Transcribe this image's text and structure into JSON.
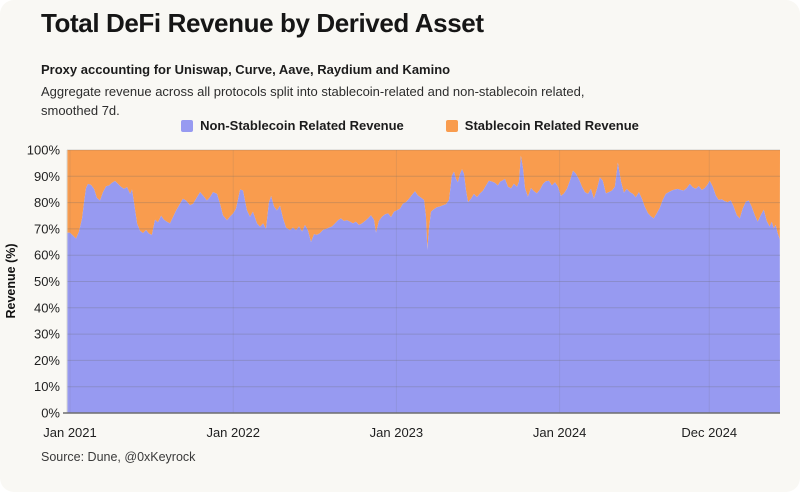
{
  "page": {
    "background": "#F9F8F4"
  },
  "header": {
    "title": "Total DeFi Revenue by Derived Asset"
  },
  "subtitle": "Proxy accounting for Uniswap, Curve, Aave, Raydium and Kamino",
  "description_lines": {
    "l1": "Aggregate revenue across all protocols split into stablecoin-related and non-stablecoin related,",
    "l2": "smoothed 7d."
  },
  "legend": {
    "items": [
      {
        "label": "Non-Stablecoin Related Revenue",
        "color": "#979AF1"
      },
      {
        "label": "Stablecoin Related Revenue",
        "color": "#F99C4E"
      }
    ]
  },
  "source": "Source: Dune, @0xKeyrock",
  "colors": {
    "non_stablecoin_area": "#979AF1",
    "stablecoin_area": "#F99C4E",
    "gridline": "rgba(105,105,105,0.27)",
    "year_gridline": "rgba(105,105,105,0.14)",
    "axis_line": "#6e6e6e",
    "plot_left_border": "#d8d8d4"
  },
  "chart_data": {
    "type": "area",
    "stacked": true,
    "title": "Total DeFi Revenue by Derived Asset",
    "xlabel": "",
    "ylabel": "Revenue (%)",
    "ylim": [
      0,
      100
    ],
    "y_tick_step": 10,
    "y_tick_labels": [
      "0%",
      "10%",
      "20%",
      "30%",
      "40%",
      "50%",
      "60%",
      "70%",
      "80%",
      "90%",
      "100%"
    ],
    "grid": true,
    "legend_position": "top",
    "x_ticks": [
      {
        "label": "Jan 2021",
        "year": 2021.0
      },
      {
        "label": "Jan 2022",
        "year": 2022.0
      },
      {
        "label": "Jan 2023",
        "year": 2023.0
      },
      {
        "label": "Jan 2024",
        "year": 2024.0
      },
      {
        "label": "Dec 2024",
        "year": 2024.917
      }
    ],
    "series": [
      {
        "name": "Non-Stablecoin Related Revenue",
        "color": "#979AF1",
        "units": "% of total revenue",
        "points": [
          [
            2020.982,
            68.5
          ],
          [
            2021.0,
            68.5
          ],
          [
            2021.018,
            67.5
          ],
          [
            2021.037,
            66.3
          ],
          [
            2021.055,
            69.0
          ],
          [
            2021.074,
            74.0
          ],
          [
            2021.086,
            80.0
          ],
          [
            2021.098,
            85.5
          ],
          [
            2021.11,
            87.1
          ],
          [
            2021.129,
            86.7
          ],
          [
            2021.147,
            85.2
          ],
          [
            2021.165,
            81.8
          ],
          [
            2021.184,
            80.8
          ],
          [
            2021.202,
            84.0
          ],
          [
            2021.221,
            86.2
          ],
          [
            2021.239,
            86.5
          ],
          [
            2021.257,
            87.5
          ],
          [
            2021.276,
            88.2
          ],
          [
            2021.294,
            87.1
          ],
          [
            2021.312,
            86.0
          ],
          [
            2021.331,
            85.2
          ],
          [
            2021.349,
            85.9
          ],
          [
            2021.368,
            83.3
          ],
          [
            2021.38,
            85.0
          ],
          [
            2021.392,
            80.0
          ],
          [
            2021.411,
            72.0
          ],
          [
            2021.429,
            69.3
          ],
          [
            2021.447,
            68.4
          ],
          [
            2021.466,
            69.6
          ],
          [
            2021.484,
            68.2
          ],
          [
            2021.502,
            67.7
          ],
          [
            2021.521,
            73.5
          ],
          [
            2021.539,
            72.5
          ],
          [
            2021.558,
            75.0
          ],
          [
            2021.576,
            73.5
          ],
          [
            2021.594,
            72.7
          ],
          [
            2021.613,
            72.1
          ],
          [
            2021.631,
            74.5
          ],
          [
            2021.65,
            77.0
          ],
          [
            2021.674,
            79.6
          ],
          [
            2021.692,
            81.5
          ],
          [
            2021.711,
            80.8
          ],
          [
            2021.735,
            79.0
          ],
          [
            2021.754,
            79.6
          ],
          [
            2021.778,
            82.1
          ],
          [
            2021.797,
            84.0
          ],
          [
            2021.815,
            82.7
          ],
          [
            2021.839,
            80.8
          ],
          [
            2021.858,
            82.1
          ],
          [
            2021.876,
            84.0
          ],
          [
            2021.901,
            83.3
          ],
          [
            2021.919,
            79.6
          ],
          [
            2021.937,
            75.2
          ],
          [
            2021.962,
            73.3
          ],
          [
            2021.98,
            74.6
          ],
          [
            2022.0,
            75.9
          ],
          [
            2022.017,
            77.7
          ],
          [
            2022.029,
            81.0
          ],
          [
            2022.042,
            85.0
          ],
          [
            2022.06,
            84.6
          ],
          [
            2022.084,
            77.1
          ],
          [
            2022.103,
            74.6
          ],
          [
            2022.121,
            76.5
          ],
          [
            2022.146,
            72.1
          ],
          [
            2022.164,
            70.8
          ],
          [
            2022.183,
            72.1
          ],
          [
            2022.201,
            70.0
          ],
          [
            2022.219,
            80.0
          ],
          [
            2022.232,
            82.5
          ],
          [
            2022.25,
            78.5
          ],
          [
            2022.268,
            77.0
          ],
          [
            2022.287,
            78.8
          ],
          [
            2022.305,
            74.0
          ],
          [
            2022.324,
            70.5
          ],
          [
            2022.348,
            69.5
          ],
          [
            2022.366,
            70.5
          ],
          [
            2022.385,
            69.5
          ],
          [
            2022.403,
            70.9
          ],
          [
            2022.422,
            69.0
          ],
          [
            2022.44,
            71.5
          ],
          [
            2022.458,
            69.5
          ],
          [
            2022.477,
            65.0
          ],
          [
            2022.495,
            68.0
          ],
          [
            2022.513,
            67.7
          ],
          [
            2022.532,
            68.4
          ],
          [
            2022.55,
            69.6
          ],
          [
            2022.569,
            70.0
          ],
          [
            2022.587,
            70.5
          ],
          [
            2022.605,
            70.9
          ],
          [
            2022.624,
            72.1
          ],
          [
            2022.642,
            73.3
          ],
          [
            2022.66,
            74.0
          ],
          [
            2022.679,
            73.0
          ],
          [
            2022.697,
            73.3
          ],
          [
            2022.716,
            72.7
          ],
          [
            2022.734,
            72.1
          ],
          [
            2022.752,
            72.7
          ],
          [
            2022.771,
            71.5
          ],
          [
            2022.789,
            72.1
          ],
          [
            2022.808,
            73.0
          ],
          [
            2022.826,
            74.0
          ],
          [
            2022.844,
            75.2
          ],
          [
            2022.863,
            73.5
          ],
          [
            2022.875,
            68.5
          ],
          [
            2022.893,
            73.0
          ],
          [
            2022.912,
            74.6
          ],
          [
            2022.93,
            75.5
          ],
          [
            2022.949,
            75.9
          ],
          [
            2022.967,
            74.5
          ],
          [
            2022.985,
            76.5
          ],
          [
            2023.004,
            77.1
          ],
          [
            2023.022,
            77.7
          ],
          [
            2023.04,
            79.6
          ],
          [
            2023.059,
            80.2
          ],
          [
            2023.077,
            81.5
          ],
          [
            2023.096,
            83.0
          ],
          [
            2023.114,
            84.3
          ],
          [
            2023.132,
            82.7
          ],
          [
            2023.151,
            81.9
          ],
          [
            2023.169,
            81.0
          ],
          [
            2023.181,
            75.0
          ],
          [
            2023.19,
            62.0
          ],
          [
            2023.199,
            70.0
          ],
          [
            2023.212,
            76.5
          ],
          [
            2023.23,
            77.5
          ],
          [
            2023.248,
            78.2
          ],
          [
            2023.267,
            78.5
          ],
          [
            2023.285,
            79.0
          ],
          [
            2023.304,
            79.4
          ],
          [
            2023.322,
            81.0
          ],
          [
            2023.34,
            90.3
          ],
          [
            2023.353,
            91.7
          ],
          [
            2023.365,
            89.0
          ],
          [
            2023.377,
            87.7
          ],
          [
            2023.389,
            90.8
          ],
          [
            2023.402,
            92.7
          ],
          [
            2023.414,
            91.0
          ],
          [
            2023.426,
            85.0
          ],
          [
            2023.439,
            80.2
          ],
          [
            2023.457,
            81.5
          ],
          [
            2023.475,
            83.3
          ],
          [
            2023.494,
            82.1
          ],
          [
            2023.512,
            83.5
          ],
          [
            2023.53,
            84.5
          ],
          [
            2023.549,
            86.5
          ],
          [
            2023.567,
            88.3
          ],
          [
            2023.586,
            88.0
          ],
          [
            2023.604,
            87.5
          ],
          [
            2023.622,
            86.5
          ],
          [
            2023.635,
            87.9
          ],
          [
            2023.653,
            88.5
          ],
          [
            2023.665,
            89.0
          ],
          [
            2023.684,
            86.0
          ],
          [
            2023.702,
            85.4
          ],
          [
            2023.72,
            87.2
          ],
          [
            2023.739,
            86.0
          ],
          [
            2023.751,
            88.0
          ],
          [
            2023.763,
            97.8
          ],
          [
            2023.776,
            93.0
          ],
          [
            2023.788,
            85.5
          ],
          [
            2023.806,
            82.2
          ],
          [
            2023.825,
            85.5
          ],
          [
            2023.843,
            84.3
          ],
          [
            2023.861,
            83.5
          ],
          [
            2023.88,
            85.0
          ],
          [
            2023.898,
            87.1
          ],
          [
            2023.916,
            88.1
          ],
          [
            2023.935,
            88.3
          ],
          [
            2023.953,
            86.5
          ],
          [
            2023.972,
            87.7
          ],
          [
            2023.99,
            86.0
          ],
          [
            2024.008,
            82.5
          ],
          [
            2024.027,
            83.5
          ],
          [
            2024.045,
            85.2
          ],
          [
            2024.063,
            88.3
          ],
          [
            2024.082,
            92.1
          ],
          [
            2024.1,
            91.0
          ],
          [
            2024.119,
            88.8
          ],
          [
            2024.137,
            86.0
          ],
          [
            2024.155,
            84.0
          ],
          [
            2024.174,
            83.3
          ],
          [
            2024.192,
            85.2
          ],
          [
            2024.21,
            81.5
          ],
          [
            2024.229,
            85.2
          ],
          [
            2024.247,
            89.6
          ],
          [
            2024.265,
            88.3
          ],
          [
            2024.284,
            83.5
          ],
          [
            2024.302,
            84.0
          ],
          [
            2024.321,
            84.6
          ],
          [
            2024.339,
            86.0
          ],
          [
            2024.357,
            95.2
          ],
          [
            2024.376,
            88.0
          ],
          [
            2024.394,
            83.8
          ],
          [
            2024.412,
            85.2
          ],
          [
            2024.431,
            84.0
          ],
          [
            2024.449,
            83.3
          ],
          [
            2024.467,
            82.0
          ],
          [
            2024.486,
            84.0
          ],
          [
            2024.504,
            81.5
          ],
          [
            2024.522,
            78.4
          ],
          [
            2024.541,
            76.0
          ],
          [
            2024.559,
            74.8
          ],
          [
            2024.577,
            74.0
          ],
          [
            2024.596,
            76.0
          ],
          [
            2024.614,
            78.0
          ],
          [
            2024.632,
            81.0
          ],
          [
            2024.651,
            83.3
          ],
          [
            2024.669,
            84.0
          ],
          [
            2024.688,
            84.6
          ],
          [
            2024.706,
            85.0
          ],
          [
            2024.724,
            85.2
          ],
          [
            2024.743,
            84.8
          ],
          [
            2024.761,
            84.6
          ],
          [
            2024.779,
            85.5
          ],
          [
            2024.798,
            87.1
          ],
          [
            2024.816,
            85.8
          ],
          [
            2024.834,
            85.2
          ],
          [
            2024.853,
            86.3
          ],
          [
            2024.871,
            84.8
          ],
          [
            2024.889,
            85.5
          ],
          [
            2024.908,
            87.0
          ],
          [
            2024.92,
            88.3
          ],
          [
            2024.939,
            86.0
          ],
          [
            2024.957,
            82.7
          ],
          [
            2024.975,
            81.0
          ],
          [
            2024.993,
            81.3
          ],
          [
            2025.012,
            80.5
          ],
          [
            2025.03,
            80.2
          ],
          [
            2025.049,
            80.8
          ],
          [
            2025.067,
            78.4
          ],
          [
            2025.086,
            75.2
          ],
          [
            2025.104,
            74.0
          ],
          [
            2025.122,
            77.7
          ],
          [
            2025.141,
            80.3
          ],
          [
            2025.159,
            80.8
          ],
          [
            2025.177,
            78.4
          ],
          [
            2025.196,
            75.2
          ],
          [
            2025.214,
            72.7
          ],
          [
            2025.232,
            75.2
          ],
          [
            2025.251,
            77.3
          ],
          [
            2025.269,
            73.0
          ],
          [
            2025.287,
            70.9
          ],
          [
            2025.3,
            72.7
          ],
          [
            2025.312,
            70.2
          ],
          [
            2025.324,
            71.5
          ],
          [
            2025.336,
            68.4
          ],
          [
            2025.349,
            66.0
          ]
        ]
      },
      {
        "name": "Stablecoin Related Revenue",
        "color": "#F99C4E",
        "units": "% of total revenue",
        "derived": "100 minus Non-Stablecoin Related Revenue (stacked to 100%)"
      }
    ]
  }
}
